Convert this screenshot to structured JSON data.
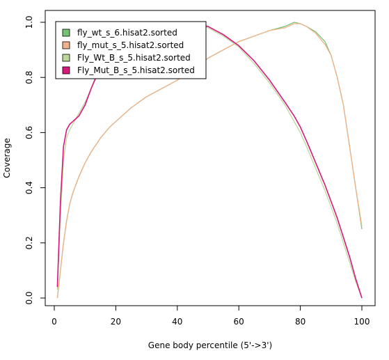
{
  "chart_data": {
    "type": "line",
    "xlabel": "Gene body percentile (5'->3')",
    "ylabel": "Coverage",
    "xlim": [
      0,
      100
    ],
    "ylim": [
      0,
      1
    ],
    "x_ticks": [
      "0",
      "20",
      "40",
      "60",
      "80",
      "100"
    ],
    "y_ticks": [
      "0.0",
      "0.2",
      "0.4",
      "0.6",
      "0.8",
      "1.0"
    ],
    "grid": false,
    "legend_position": "top-left",
    "x": [
      1,
      2,
      3,
      4,
      5,
      6,
      8,
      10,
      12,
      15,
      18,
      20,
      25,
      30,
      35,
      40,
      45,
      50,
      55,
      60,
      65,
      70,
      75,
      78,
      80,
      82,
      85,
      88,
      90,
      92,
      94,
      96,
      98,
      100
    ],
    "series": [
      {
        "name": "fly_wt_s_6.hisat2.sorted",
        "color": "#74c476",
        "values": [
          0.0,
          0.1,
          0.2,
          0.28,
          0.34,
          0.38,
          0.44,
          0.49,
          0.53,
          0.58,
          0.62,
          0.64,
          0.69,
          0.73,
          0.76,
          0.79,
          0.83,
          0.87,
          0.9,
          0.93,
          0.95,
          0.97,
          0.985,
          1.0,
          0.995,
          0.985,
          0.965,
          0.93,
          0.88,
          0.8,
          0.7,
          0.55,
          0.4,
          0.25
        ]
      },
      {
        "name": "fly_mut_s_5.hisat2.sorted",
        "color": "#f1b18a",
        "values": [
          0.0,
          0.1,
          0.2,
          0.28,
          0.34,
          0.38,
          0.44,
          0.49,
          0.53,
          0.58,
          0.62,
          0.64,
          0.69,
          0.73,
          0.76,
          0.79,
          0.83,
          0.87,
          0.9,
          0.93,
          0.95,
          0.97,
          0.98,
          0.995,
          0.995,
          0.985,
          0.96,
          0.92,
          0.88,
          0.8,
          0.7,
          0.55,
          0.4,
          0.26
        ]
      },
      {
        "name": "Fly_Wt_B_s_5.hisat2.sorted",
        "color": "#bcd79a",
        "values": [
          0.03,
          0.3,
          0.5,
          0.58,
          0.61,
          0.63,
          0.67,
          0.71,
          0.76,
          0.83,
          0.88,
          0.91,
          0.96,
          0.985,
          0.995,
          1.0,
          0.995,
          0.98,
          0.95,
          0.91,
          0.85,
          0.78,
          0.7,
          0.64,
          0.6,
          0.55,
          0.47,
          0.39,
          0.33,
          0.27,
          0.2,
          0.13,
          0.06,
          0.0
        ]
      },
      {
        "name": "Fly_Mut_B_s_5.hisat2.sorted",
        "color": "#d6197b",
        "values": [
          0.04,
          0.35,
          0.55,
          0.61,
          0.63,
          0.64,
          0.66,
          0.7,
          0.76,
          0.84,
          0.9,
          0.93,
          0.97,
          0.99,
          0.997,
          1.0,
          0.995,
          0.985,
          0.955,
          0.915,
          0.86,
          0.79,
          0.71,
          0.66,
          0.62,
          0.57,
          0.49,
          0.41,
          0.35,
          0.29,
          0.22,
          0.15,
          0.07,
          0.0
        ]
      }
    ]
  }
}
